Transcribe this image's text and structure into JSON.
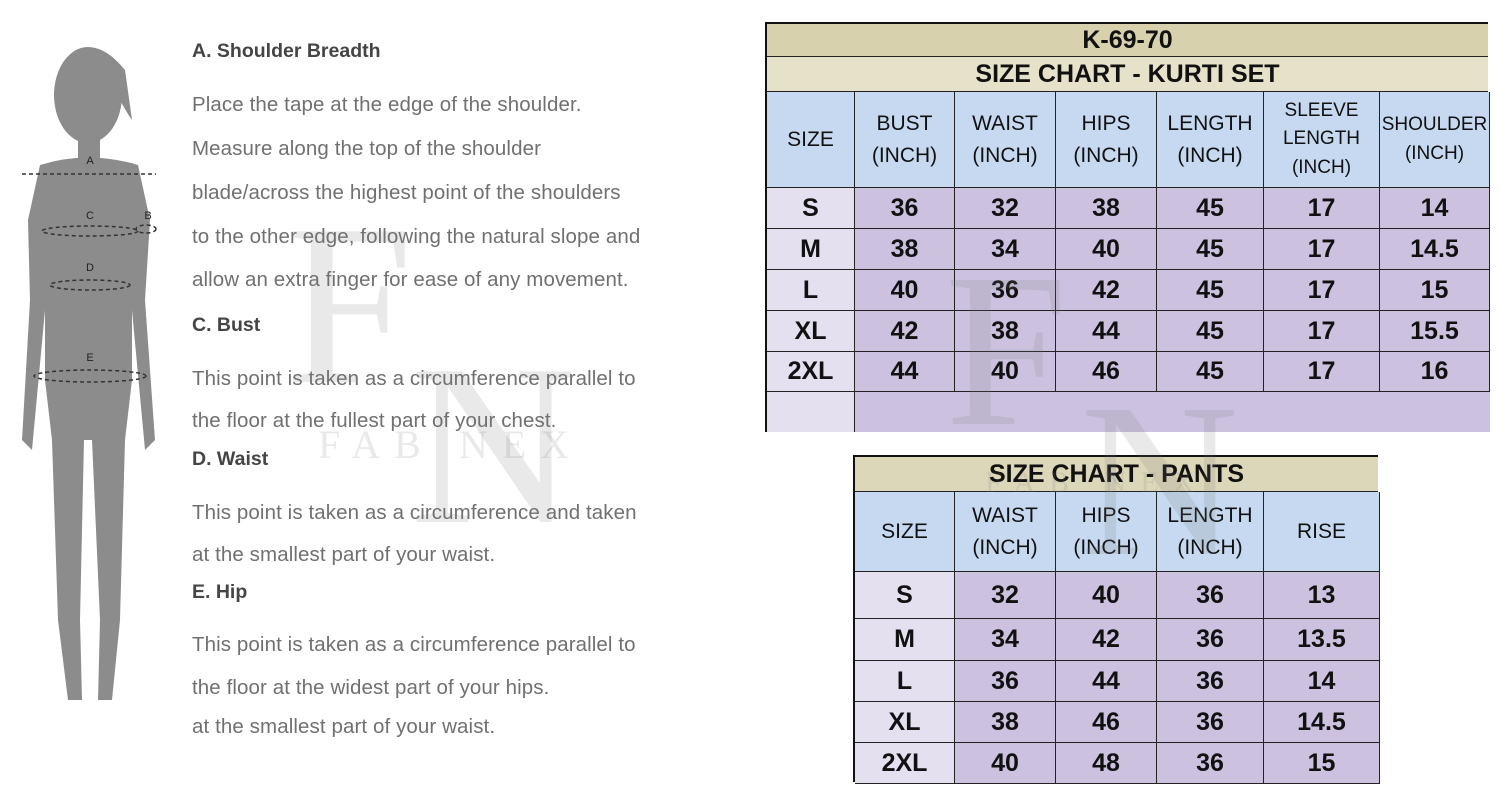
{
  "figure": {
    "labels": [
      "A",
      "B",
      "C",
      "D",
      "E"
    ]
  },
  "watermark": {
    "monogram": [
      "F",
      "N"
    ],
    "name": "FAB NEX"
  },
  "guide": [
    {
      "heading": "A. Shoulder Breadth",
      "lines": [
        "Place the tape at the edge of the shoulder.",
        "Measure along the top of the shoulder",
        "blade/across the highest point of the shoulders",
        "to the other edge, following the natural slope and",
        "allow an extra finger for ease of any movement."
      ]
    },
    {
      "heading": "C. Bust",
      "lines": [
        "This point is taken as a circumference parallel to",
        "the floor at the fullest part of your chest."
      ]
    },
    {
      "heading": "D. Waist",
      "lines": [
        "This point is taken as a circumference and taken",
        "at the smallest part of your waist."
      ]
    },
    {
      "heading": "E. Hip",
      "lines": [
        "This point is taken as a circumference parallel to",
        "the floor at the widest part of your hips.",
        "at the smallest part of your waist."
      ]
    }
  ],
  "kurti_table": {
    "code": "K-69-70",
    "title": "SIZE CHART - KURTI SET",
    "headers": [
      [
        "SIZE"
      ],
      [
        "BUST",
        "(INCH)"
      ],
      [
        "WAIST",
        "(INCH)"
      ],
      [
        "HIPS",
        "(INCH)"
      ],
      [
        "LENGTH",
        "(INCH)"
      ],
      [
        "SLEEVE",
        "LENGTH",
        "(INCH)"
      ],
      [
        "SHOULDER",
        "(INCH)"
      ]
    ],
    "rows": [
      [
        "S",
        36,
        32,
        38,
        45,
        17,
        14
      ],
      [
        "M",
        38,
        34,
        40,
        45,
        17,
        14.5
      ],
      [
        "L",
        40,
        36,
        42,
        45,
        17,
        15
      ],
      [
        "XL",
        42,
        38,
        44,
        45,
        17,
        15.5
      ],
      [
        "2XL",
        44,
        40,
        46,
        45,
        17,
        16
      ]
    ]
  },
  "pants_table": {
    "title": "SIZE CHART -  PANTS",
    "headers": [
      [
        "SIZE"
      ],
      [
        "WAIST",
        "(INCH)"
      ],
      [
        "HIPS",
        "(INCH)"
      ],
      [
        "LENGTH",
        "(INCH)"
      ],
      [
        "RISE"
      ]
    ],
    "rows": [
      [
        "S",
        32,
        40,
        36,
        13
      ],
      [
        "M",
        34,
        42,
        36,
        13.5
      ],
      [
        "L",
        36,
        44,
        36,
        14
      ],
      [
        "XL",
        38,
        46,
        36,
        14.5
      ],
      [
        "2XL",
        40,
        48,
        36,
        15
      ]
    ]
  }
}
